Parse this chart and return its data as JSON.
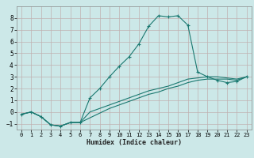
{
  "title": "",
  "xlabel": "Humidex (Indice chaleur)",
  "bg_color": "#cce8e8",
  "grid_color": "#c0b0b0",
  "line_color": "#1a7870",
  "xlim": [
    -0.5,
    23.5
  ],
  "ylim": [
    -1.5,
    9.0
  ],
  "xticks": [
    0,
    1,
    2,
    3,
    4,
    5,
    6,
    7,
    8,
    9,
    10,
    11,
    12,
    13,
    14,
    15,
    16,
    17,
    18,
    19,
    20,
    21,
    22,
    23
  ],
  "yticks": [
    -1,
    0,
    1,
    2,
    3,
    4,
    5,
    6,
    7,
    8
  ],
  "line_main": {
    "x": [
      0,
      1,
      2,
      3,
      4,
      5,
      6,
      7,
      8,
      9,
      10,
      11,
      12,
      13,
      14,
      15,
      16,
      17,
      18,
      19,
      20,
      21,
      22,
      23
    ],
    "y": [
      -0.2,
      0.0,
      -0.4,
      -1.1,
      -1.2,
      -0.9,
      -0.9,
      1.2,
      2.0,
      3.0,
      3.9,
      4.7,
      5.8,
      7.3,
      8.2,
      8.1,
      8.2,
      7.4,
      3.4,
      3.0,
      2.7,
      2.5,
      2.6,
      3.0
    ]
  },
  "line2": {
    "x": [
      0,
      1,
      2,
      3,
      4,
      5,
      6,
      7,
      8,
      9,
      10,
      11,
      12,
      13,
      14,
      15,
      16,
      17,
      18,
      19,
      20,
      21,
      22,
      23
    ],
    "y": [
      -0.2,
      0.0,
      -0.4,
      -1.1,
      -1.2,
      -0.9,
      -0.9,
      0.0,
      0.3,
      0.6,
      0.9,
      1.2,
      1.5,
      1.8,
      2.0,
      2.2,
      2.5,
      2.8,
      2.9,
      3.0,
      3.0,
      2.9,
      2.8,
      3.0
    ]
  },
  "line3": {
    "x": [
      0,
      1,
      2,
      3,
      4,
      5,
      6,
      7,
      8,
      9,
      10,
      11,
      12,
      13,
      14,
      15,
      16,
      17,
      18,
      19,
      20,
      21,
      22,
      23
    ],
    "y": [
      -0.2,
      0.0,
      -0.4,
      -1.1,
      -1.2,
      -0.9,
      -0.9,
      -0.5,
      -0.1,
      0.3,
      0.6,
      0.9,
      1.2,
      1.5,
      1.7,
      2.0,
      2.2,
      2.5,
      2.7,
      2.8,
      2.8,
      2.8,
      2.7,
      3.0
    ]
  }
}
